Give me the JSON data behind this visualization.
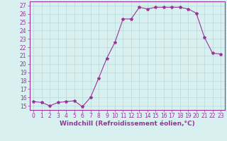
{
  "x": [
    0,
    1,
    2,
    3,
    4,
    5,
    6,
    7,
    8,
    9,
    10,
    11,
    12,
    13,
    14,
    15,
    16,
    17,
    18,
    19,
    20,
    21,
    22,
    23
  ],
  "y": [
    15.5,
    15.4,
    15.0,
    15.4,
    15.5,
    15.6,
    14.9,
    16.0,
    18.3,
    20.7,
    22.6,
    25.4,
    25.4,
    26.8,
    26.6,
    26.8,
    26.8,
    26.8,
    26.8,
    26.6,
    26.1,
    23.2,
    21.3,
    21.2
  ],
  "line_color": "#993399",
  "marker": "*",
  "marker_size": 3,
  "bg_color": "#d8f0f0",
  "grid_color": "#b8dada",
  "xlabel": "Windchill (Refroidissement éolien,°C)",
  "xlabel_fontsize": 6.5,
  "ylim": [
    14.5,
    27.5
  ],
  "xlim": [
    -0.5,
    23.5
  ],
  "yticks": [
    15,
    16,
    17,
    18,
    19,
    20,
    21,
    22,
    23,
    24,
    25,
    26,
    27
  ],
  "xticks": [
    0,
    1,
    2,
    3,
    4,
    5,
    6,
    7,
    8,
    9,
    10,
    11,
    12,
    13,
    14,
    15,
    16,
    17,
    18,
    19,
    20,
    21,
    22,
    23
  ],
  "tick_fontsize": 5.5,
  "tick_color": "#993399",
  "axis_color": "#993399",
  "spine_color": "#993399"
}
